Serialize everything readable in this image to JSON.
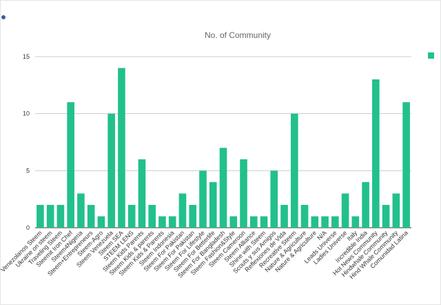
{
  "chart_data": {
    "type": "bar",
    "title": "No. of Community",
    "categories": [
      "Venezolanos Steem",
      "Ukraine on steem",
      "Traveling Steem",
      "Steemit Iron Chef",
      "Steem4Nigeria",
      "Steem+Entrepreneurs",
      "Steem-Agro",
      "Steem Venezuela",
      "Steem SEA",
      "STEEM LENS",
      "Steem Kids Parents",
      "Steem Kids & parents",
      "Steem Kids & Parents",
      "Steem Indonesia",
      "Steem For Pakistan",
      "Steem For Pakistan",
      "Steem For Lifestyle",
      "Steem For Betterlife",
      "Steem For Bangladesh",
      "Steem Fashion&Style",
      "Steem Cameroon",
      "Steem Alliance",
      "Shine with Steem",
      "Scouts y sus Amigos",
      "Reflexiones de Vida",
      "Recreative Steem",
      "Nature & Agriculture",
      "Nature & Agriculture",
      "N/A",
      "Leads Universe",
      "Ladies Universe",
      "Italy",
      "Incredible India",
      "Hot News Community",
      "Hindwhale Community",
      "Hind Whale Community",
      "Comunidad Latina"
    ],
    "values": [
      2,
      2,
      2,
      11,
      3,
      2,
      1,
      10,
      14,
      2,
      6,
      2,
      1,
      1,
      3,
      2,
      5,
      4,
      7,
      1,
      6,
      1,
      1,
      5,
      2,
      10,
      2,
      1,
      1,
      1,
      3,
      1,
      4,
      13,
      2,
      3,
      11
    ],
    "color": "#22c08c",
    "ylim": [
      0,
      15
    ],
    "yticks": [
      0,
      5,
      10,
      15
    ],
    "grid": true
  }
}
